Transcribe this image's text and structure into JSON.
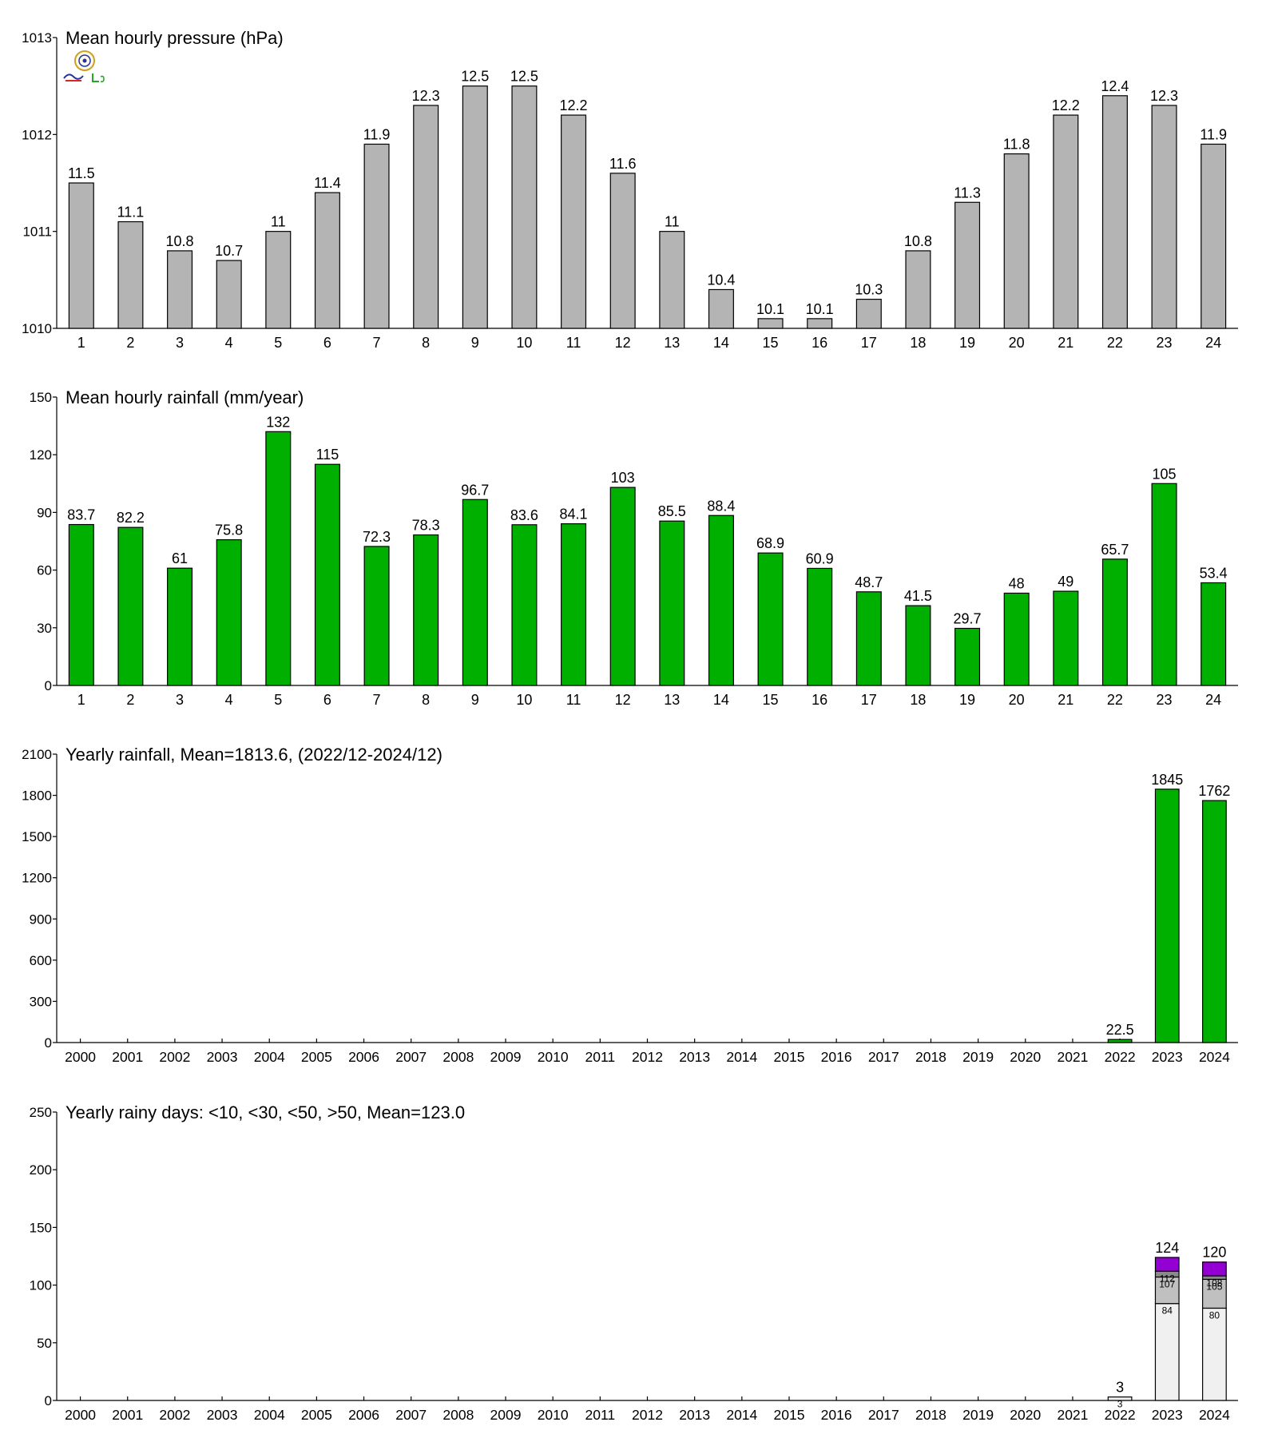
{
  "colors": {
    "pressure_bar": "#b4b4b4",
    "rain_bar": "#00b000",
    "bar_stroke": "#000000",
    "days_lt10": "#f0f0f0",
    "days_lt30": "#c0c0c0",
    "days_lt50": "#8a8a8a",
    "days_gt50": "#9400d3",
    "logo_blue": "#2233aa",
    "logo_red": "#dd2222",
    "logo_green": "#22aa22"
  },
  "chart_data": [
    {
      "id": "pressure",
      "type": "bar",
      "title": "Mean hourly pressure (hPa)",
      "categories": [
        "1",
        "2",
        "3",
        "4",
        "5",
        "6",
        "7",
        "8",
        "9",
        "10",
        "11",
        "12",
        "13",
        "14",
        "15",
        "16",
        "17",
        "18",
        "19",
        "20",
        "21",
        "22",
        "23",
        "24"
      ],
      "values": [
        1011.5,
        1011.1,
        1010.8,
        1010.7,
        1011,
        1011.4,
        1011.9,
        1012.3,
        1012.5,
        1012.5,
        1012.2,
        1011.6,
        1011,
        1010.4,
        1010.1,
        1010.1,
        1010.3,
        1010.8,
        1011.3,
        1011.8,
        1012.2,
        1012.4,
        1012.3,
        1011.9
      ],
      "labels": [
        "11.5",
        "11.1",
        "10.8",
        "10.7",
        "11",
        "11.4",
        "11.9",
        "12.3",
        "12.5",
        "12.5",
        "12.2",
        "11.6",
        "11",
        "10.4",
        "10.1",
        "10.1",
        "10.3",
        "10.8",
        "11.3",
        "11.8",
        "12.2",
        "12.4",
        "12.3",
        "11.9"
      ],
      "ylim": [
        1010,
        1013
      ],
      "yticks": [
        1010,
        1011,
        1012,
        1013
      ],
      "grid": false
    },
    {
      "id": "hourly_rain",
      "type": "bar",
      "title": "Mean hourly rainfall (mm/year)",
      "categories": [
        "1",
        "2",
        "3",
        "4",
        "5",
        "6",
        "7",
        "8",
        "9",
        "10",
        "11",
        "12",
        "13",
        "14",
        "15",
        "16",
        "17",
        "18",
        "19",
        "20",
        "21",
        "22",
        "23",
        "24"
      ],
      "values": [
        83.7,
        82.2,
        61,
        75.8,
        132,
        115,
        72.3,
        78.3,
        96.7,
        83.6,
        84.1,
        103,
        85.5,
        88.4,
        68.9,
        60.9,
        48.7,
        41.5,
        29.7,
        48,
        49,
        65.7,
        105,
        53.4
      ],
      "labels": [
        "83.7",
        "82.2",
        "61",
        "75.8",
        "132",
        "115",
        "72.3",
        "78.3",
        "96.7",
        "83.6",
        "84.1",
        "103",
        "85.5",
        "88.4",
        "68.9",
        "60.9",
        "48.7",
        "41.5",
        "29.7",
        "48",
        "49",
        "65.7",
        "105",
        "53.4"
      ],
      "ylim": [
        0,
        150
      ],
      "yticks": [
        0,
        30,
        60,
        90,
        120,
        150
      ],
      "grid": false
    },
    {
      "id": "yearly_rain",
      "type": "bar",
      "title": "Yearly rainfall, Mean=1813.6, (2022/12-2024/12)",
      "categories": [
        "2000",
        "2001",
        "2002",
        "2003",
        "2004",
        "2005",
        "2006",
        "2007",
        "2008",
        "2009",
        "2010",
        "2011",
        "2012",
        "2013",
        "2014",
        "2015",
        "2016",
        "2017",
        "2018",
        "2019",
        "2020",
        "2021",
        "2022",
        "2023",
        "2024"
      ],
      "values": [
        null,
        null,
        null,
        null,
        null,
        null,
        null,
        null,
        null,
        null,
        null,
        null,
        null,
        null,
        null,
        null,
        null,
        null,
        null,
        null,
        null,
        null,
        22.5,
        1845,
        1762
      ],
      "labels": [
        "",
        "",
        "",
        "",
        "",
        "",
        "",
        "",
        "",
        "",
        "",
        "",
        "",
        "",
        "",
        "",
        "",
        "",
        "",
        "",
        "",
        "",
        "22.5",
        "1845",
        "1762"
      ],
      "ylim": [
        0,
        2100
      ],
      "yticks": [
        0,
        300,
        600,
        900,
        1200,
        1500,
        1800,
        2100
      ],
      "grid": false
    },
    {
      "id": "rainy_days",
      "type": "bar",
      "stacked": true,
      "title": "Yearly rainy days: <10, <30, <50, >50, Mean=123.0",
      "categories": [
        "2000",
        "2001",
        "2002",
        "2003",
        "2004",
        "2005",
        "2006",
        "2007",
        "2008",
        "2009",
        "2010",
        "2011",
        "2012",
        "2013",
        "2014",
        "2015",
        "2016",
        "2017",
        "2018",
        "2019",
        "2020",
        "2021",
        "2022",
        "2023",
        "2024"
      ],
      "series_colors": [
        "#f0f0f0",
        "#c0c0c0",
        "#8a8a8a",
        "#9400d3"
      ],
      "stacks": [
        {
          "category": "2022",
          "cumulative": [
            3,
            3,
            3,
            3
          ],
          "inner_labels": [
            "3",
            "",
            "",
            ""
          ],
          "total": "3"
        },
        {
          "category": "2023",
          "cumulative": [
            84,
            107,
            112,
            124
          ],
          "inner_labels": [
            "84",
            "107",
            "112",
            ""
          ],
          "total": "124"
        },
        {
          "category": "2024",
          "cumulative": [
            80,
            105,
            108,
            120
          ],
          "inner_labels": [
            "80",
            "105",
            "108",
            ""
          ],
          "total": "120"
        }
      ],
      "ylim": [
        0,
        250
      ],
      "yticks": [
        0,
        50,
        100,
        150,
        200,
        250
      ],
      "grid": false
    }
  ]
}
